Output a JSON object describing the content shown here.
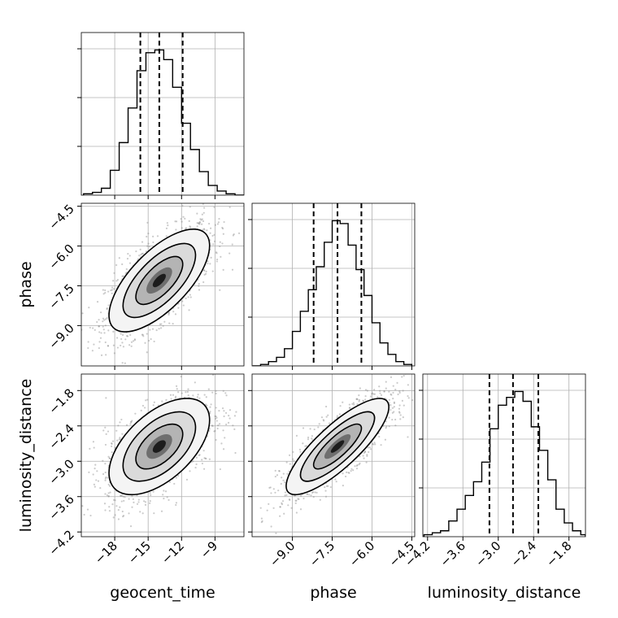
{
  "chart_data": {
    "type": "corner",
    "parameters": [
      "geocent_time",
      "phase",
      "luminosity_distance"
    ],
    "ranges": {
      "geocent_time": [
        -21,
        -6.4
      ],
      "phase": [
        -10.52,
        -4.39
      ],
      "luminosity_distance": [
        -4.28,
        -1.52
      ]
    },
    "ticks": {
      "geocent_time": [
        -18,
        -15,
        -12,
        -9
      ],
      "phase": [
        -9.0,
        -7.5,
        -6.0,
        -4.5
      ],
      "luminosity_distance": [
        -4.2,
        -3.6,
        -3.0,
        -2.4,
        -1.8
      ]
    },
    "tick_labels": {
      "geocent_time": [
        "−18",
        "−15",
        "−12",
        "−9"
      ],
      "phase": [
        "−9.0",
        "−7.5",
        "−6.0",
        "−4.5"
      ],
      "luminosity_distance": [
        "−4.2",
        "−3.6",
        "−3.0",
        "−2.4",
        "−1.8"
      ]
    },
    "grid": true,
    "histograms": {
      "geocent_time": {
        "bin_edges": [
          -20.8,
          -20.0,
          -19.2,
          -18.4,
          -17.6,
          -16.8,
          -16.0,
          -15.2,
          -14.4,
          -13.6,
          -12.8,
          -12.0,
          -11.2,
          -10.4,
          -9.6,
          -8.8,
          -8.0,
          -7.2,
          -6.4
        ],
        "counts": [
          1,
          2,
          5,
          18,
          38,
          63,
          90,
          103,
          105,
          98,
          78,
          52,
          33,
          17,
          7,
          3,
          1,
          0
        ],
        "quantiles": [
          -15.7,
          -14.0,
          -11.9
        ]
      },
      "phase": {
        "bin_edges": [
          -10.5,
          -10.2,
          -9.9,
          -9.6,
          -9.3,
          -9.0,
          -8.7,
          -8.4,
          -8.1,
          -7.8,
          -7.5,
          -7.2,
          -6.9,
          -6.6,
          -6.3,
          -6.0,
          -5.7,
          -5.4,
          -5.1,
          -4.8,
          -4.5
        ],
        "counts": [
          0,
          1,
          3,
          6,
          12,
          24,
          38,
          53,
          69,
          86,
          101,
          99,
          84,
          67,
          49,
          30,
          16,
          8,
          3,
          1
        ],
        "quantiles": [
          -8.2,
          -7.3,
          -6.4
        ]
      },
      "luminosity_distance": {
        "bin_edges": [
          -4.26,
          -4.12,
          -3.98,
          -3.84,
          -3.7,
          -3.56,
          -3.42,
          -3.28,
          -3.14,
          -3.0,
          -2.86,
          -2.72,
          -2.58,
          -2.44,
          -2.3,
          -2.16,
          -2.02,
          -1.88,
          -1.74,
          -1.6,
          -1.52
        ],
        "counts": [
          1,
          2,
          3,
          8,
          14,
          21,
          28,
          38,
          55,
          67,
          71,
          74,
          69,
          56,
          44,
          29,
          14,
          7,
          3,
          1
        ],
        "quantiles": [
          -3.15,
          -2.75,
          -2.32
        ]
      }
    },
    "joint": [
      {
        "x": "geocent_time",
        "y": "phase",
        "mean": [
          -14.0,
          -7.3
        ],
        "sd": [
          2.1,
          0.9
        ],
        "corr": 0.68
      },
      {
        "x": "geocent_time",
        "y": "luminosity_distance",
        "mean": [
          -14.0,
          -2.75
        ],
        "sd": [
          2.1,
          0.38
        ],
        "corr": 0.55
      },
      {
        "x": "phase",
        "y": "luminosity_distance",
        "mean": [
          -7.3,
          -2.75
        ],
        "sd": [
          0.9,
          0.38
        ],
        "corr": 0.82
      }
    ]
  }
}
